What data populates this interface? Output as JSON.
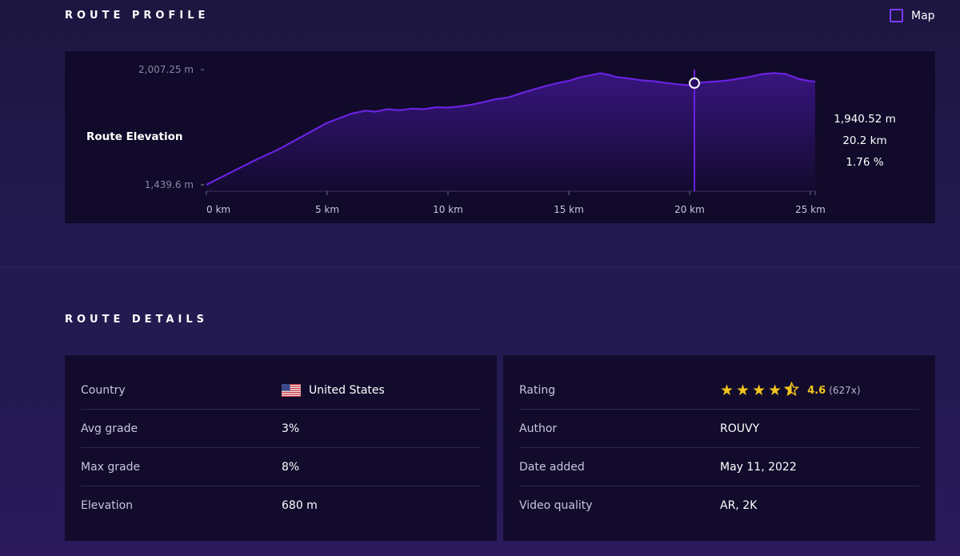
{
  "profile": {
    "title": "ROUTE PROFILE",
    "map_toggle_label": "Map",
    "chart_label": "Route Elevation",
    "readout": {
      "elevation": "1,940.52 m",
      "distance": "20.2 km",
      "grade": "1.76 %"
    }
  },
  "details": {
    "title": "ROUTE DETAILS",
    "left": [
      {
        "key": "Country",
        "value": "United States"
      },
      {
        "key": "Avg grade",
        "value": "3%"
      },
      {
        "key": "Max grade",
        "value": "8%"
      },
      {
        "key": "Elevation",
        "value": "680 m"
      }
    ],
    "right": [
      {
        "key": "Rating",
        "value": "4.6",
        "count": "(627x)",
        "stars": 4.5
      },
      {
        "key": "Author",
        "value": "ROUVY"
      },
      {
        "key": "Date added",
        "value": "May 11, 2022"
      },
      {
        "key": "Video quality",
        "value": "AR, 2K"
      }
    ]
  },
  "chart_data": {
    "type": "area",
    "y_tick_labels": [
      "2,007.25 m",
      "1,439.6 m"
    ],
    "ylim": [
      1439.6,
      2007.25
    ],
    "xlim": [
      0,
      25.2
    ],
    "x_ticks": [
      0,
      5,
      10,
      15,
      20,
      25
    ],
    "x_tick_labels": [
      "0 km",
      "5 km",
      "10 km",
      "15 km",
      "20 km",
      "25 km"
    ],
    "cursor": {
      "x": 20.2,
      "y": 1940.52
    },
    "series": [
      {
        "x": [
          0,
          1,
          2,
          3,
          4,
          5,
          6,
          6.6,
          7,
          7.5,
          8,
          8.5,
          9,
          9.5,
          10,
          10.5,
          11,
          11.5,
          12,
          12.5,
          13,
          13.5,
          14,
          14.5,
          15,
          15.5,
          16,
          16.3,
          16.6,
          17,
          17.5,
          18,
          18.5,
          19,
          19.5,
          20,
          20.2,
          20.6,
          21,
          21.5,
          22,
          22.5,
          23,
          23.5,
          24,
          24.5,
          25,
          25.2
        ],
        "y": [
          1439.6,
          1500,
          1560,
          1615,
          1680,
          1745,
          1790,
          1805,
          1800,
          1812,
          1807,
          1815,
          1812,
          1822,
          1820,
          1826,
          1835,
          1848,
          1862,
          1870,
          1890,
          1908,
          1925,
          1940,
          1952,
          1970,
          1982,
          1990,
          1983,
          1970,
          1963,
          1955,
          1950,
          1942,
          1935,
          1930,
          1940.52,
          1945,
          1948,
          1953,
          1962,
          1972,
          1985,
          1990,
          1985,
          1962,
          1950,
          1948
        ]
      }
    ],
    "colors": {
      "line": "#6a22e0",
      "fill": "#3a1583",
      "cursor": "#6a22e0"
    }
  },
  "colors": {
    "accent": "#7a3cf0",
    "star": "#f2c41c",
    "panel": "#110a2a"
  },
  "icons": {
    "map_toggle": "checkbox-icon",
    "country_flag": "us-flag-icon",
    "rating": "star-icon"
  }
}
